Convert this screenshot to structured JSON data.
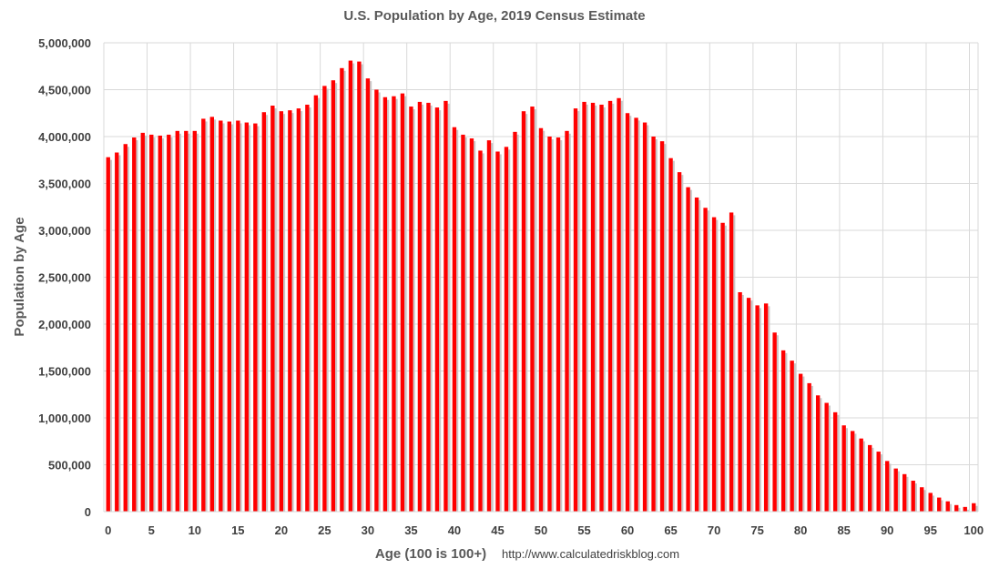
{
  "chart_data": {
    "type": "bar",
    "title": "U.S. Population by Age, 2019 Census Estimate",
    "xlabel": "Age (100 is 100+)",
    "ylabel": "Population by Age",
    "source_note": "http://www.calculatedriskblog.com",
    "ylim": [
      0,
      5000000
    ],
    "y_ticks": [
      0,
      500000,
      1000000,
      1500000,
      2000000,
      2500000,
      3000000,
      3500000,
      4000000,
      4500000,
      5000000
    ],
    "y_tick_labels": [
      "0",
      "500,000",
      "1,000,000",
      "1,500,000",
      "2,000,000",
      "2,500,000",
      "3,000,000",
      "3,500,000",
      "4,000,000",
      "4,500,000",
      "5,000,000"
    ],
    "x_ticks": [
      0,
      5,
      10,
      15,
      20,
      25,
      30,
      35,
      40,
      45,
      50,
      55,
      60,
      65,
      70,
      75,
      80,
      85,
      90,
      95,
      100
    ],
    "x_tick_labels": [
      "0",
      "5",
      "10",
      "15",
      "20",
      "25",
      "30",
      "35",
      "40",
      "45",
      "50",
      "55",
      "60",
      "65",
      "70",
      "75",
      "80",
      "85",
      "90",
      "95",
      "100"
    ],
    "grid": true,
    "bar_color": "#ff0000",
    "bar_shadow_color": "#c8c8c8",
    "categories": [
      0,
      1,
      2,
      3,
      4,
      5,
      6,
      7,
      8,
      9,
      10,
      11,
      12,
      13,
      14,
      15,
      16,
      17,
      18,
      19,
      20,
      21,
      22,
      23,
      24,
      25,
      26,
      27,
      28,
      29,
      30,
      31,
      32,
      33,
      34,
      35,
      36,
      37,
      38,
      39,
      40,
      41,
      42,
      43,
      44,
      45,
      46,
      47,
      48,
      49,
      50,
      51,
      52,
      53,
      54,
      55,
      56,
      57,
      58,
      59,
      60,
      61,
      62,
      63,
      64,
      65,
      66,
      67,
      68,
      69,
      70,
      71,
      72,
      73,
      74,
      75,
      76,
      77,
      78,
      79,
      80,
      81,
      82,
      83,
      84,
      85,
      86,
      87,
      88,
      89,
      90,
      91,
      92,
      93,
      94,
      95,
      96,
      97,
      98,
      99,
      100
    ],
    "values": [
      3780000,
      3830000,
      3920000,
      3990000,
      4040000,
      4020000,
      4010000,
      4020000,
      4060000,
      4060000,
      4060000,
      4190000,
      4210000,
      4170000,
      4160000,
      4170000,
      4150000,
      4140000,
      4260000,
      4330000,
      4270000,
      4280000,
      4300000,
      4340000,
      4440000,
      4540000,
      4600000,
      4730000,
      4810000,
      4800000,
      4620000,
      4500000,
      4420000,
      4430000,
      4460000,
      4320000,
      4370000,
      4360000,
      4310000,
      4380000,
      4100000,
      4020000,
      3980000,
      3850000,
      3960000,
      3840000,
      3890000,
      4050000,
      4270000,
      4320000,
      4090000,
      4000000,
      3990000,
      4060000,
      4300000,
      4370000,
      4360000,
      4340000,
      4380000,
      4410000,
      4250000,
      4200000,
      4150000,
      4000000,
      3950000,
      3770000,
      3620000,
      3460000,
      3350000,
      3240000,
      3140000,
      3080000,
      3190000,
      2340000,
      2280000,
      2200000,
      2220000,
      1910000,
      1720000,
      1610000,
      1470000,
      1370000,
      1240000,
      1160000,
      1060000,
      920000,
      860000,
      780000,
      710000,
      640000,
      540000,
      460000,
      400000,
      330000,
      260000,
      200000,
      150000,
      110000,
      70000,
      50000,
      90000
    ]
  }
}
